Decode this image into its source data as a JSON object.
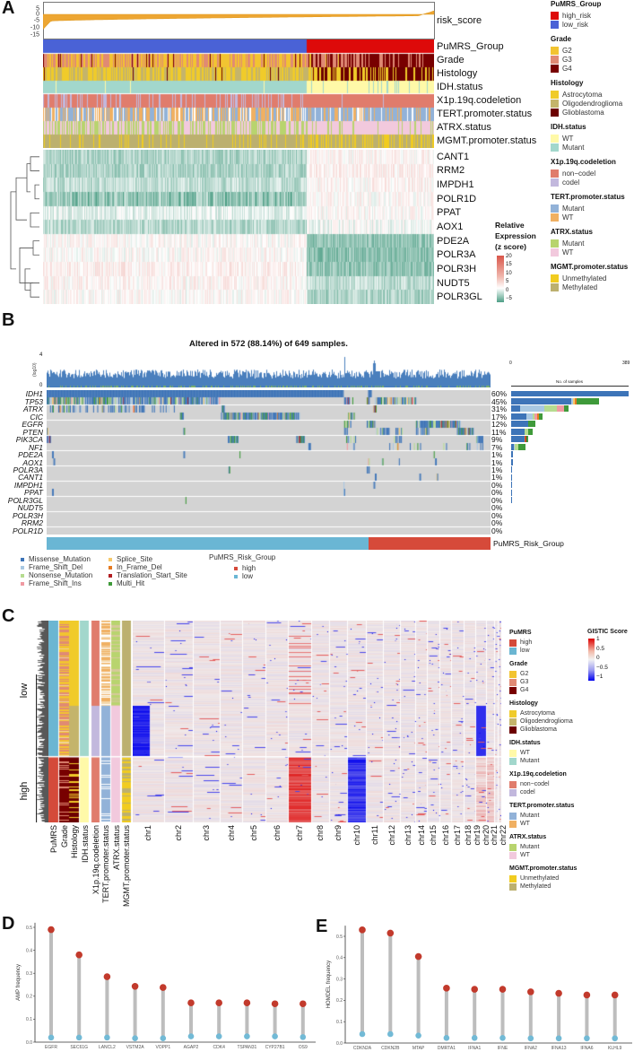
{
  "panel_labels": {
    "a": "A",
    "b": "B",
    "c": "C",
    "d": "D",
    "e": "E"
  },
  "colors": {
    "low_risk": "#4a62d6",
    "high_risk": "#dd0a0a",
    "G2": "#f2c431",
    "G3": "#e08a74",
    "G4": "#780000",
    "Astrocytoma": "#f0cb2a",
    "Oligodendroglioma": "#c4b46b",
    "Glioblastoma": "#6c0000",
    "IDH_WT": "#fff9a8",
    "IDH_Mutant": "#a2d7cc",
    "noncodel": "#e07c6c",
    "codel": "#c2b8dd",
    "TERT_Mutant": "#92b2d8",
    "TERT_WT": "#f0b062",
    "ATRX_Mutant": "#b8d46e",
    "ATRX_WT": "#f2c9dd",
    "Unmethylated": "#f1cc20",
    "Methylated": "#bcb06f",
    "pumrs_high": "#d44a3a",
    "pumrs_low": "#6bb6d2",
    "expr_low": "#4e9f86",
    "expr_high": "#d9564a",
    "gistic_low": "#0000ee",
    "gistic_high": "#dd0000",
    "lolli_high": "#c23a2c",
    "lolli_low": "#72bad6",
    "stem": "#bdbdbd"
  },
  "panelA": {
    "risk_label": "risk_score",
    "risk_ticks": [
      "5",
      "0",
      "-5",
      "-10",
      "-15"
    ],
    "tracks": [
      "PuMRS_Group",
      "Grade",
      "Histology",
      "IDH.status",
      "X1p.19q.codeletion",
      "TERT.promoter.status",
      "ATRX.status",
      "MGMT.promoter.status"
    ],
    "genes": [
      "CANT1",
      "RRM2",
      "IMPDH1",
      "POLR1D",
      "PPAT",
      "AOX1",
      "PDE2A",
      "POLR3A",
      "POLR3H",
      "NUDT5",
      "POLR3GL"
    ],
    "expr_legend": {
      "title1": "Relative",
      "title2": "Expression",
      "title3": "(z score)",
      "ticks": [
        "20",
        "15",
        "10",
        "5",
        "0",
        "−5"
      ]
    },
    "legends": [
      {
        "title": "PuMRS_Group",
        "items": [
          {
            "label": "high_risk",
            "color": "#dd0a0a"
          },
          {
            "label": "low_risk",
            "color": "#4a62d6"
          }
        ]
      },
      {
        "title": "Grade",
        "items": [
          {
            "label": "G2",
            "color": "#f2c431"
          },
          {
            "label": "G3",
            "color": "#e08a74"
          },
          {
            "label": "G4",
            "color": "#780000"
          }
        ]
      },
      {
        "title": "Histology",
        "items": [
          {
            "label": "Astrocytoma",
            "color": "#f0cb2a"
          },
          {
            "label": "Oligodendroglioma",
            "color": "#c4b46b"
          },
          {
            "label": "Glioblastoma",
            "color": "#6c0000"
          }
        ]
      },
      {
        "title": "IDH.status",
        "items": [
          {
            "label": "WT",
            "color": "#fff9a8"
          },
          {
            "label": "Mutant",
            "color": "#a2d7cc"
          }
        ]
      },
      {
        "title": "X1p.19q.codeletion",
        "items": [
          {
            "label": "non−codel",
            "color": "#e07c6c"
          },
          {
            "label": "codel",
            "color": "#c2b8dd"
          }
        ]
      },
      {
        "title": "TERT.promoter.status",
        "items": [
          {
            "label": "Mutant",
            "color": "#92b2d8"
          },
          {
            "label": "WT",
            "color": "#f0b062"
          }
        ]
      },
      {
        "title": "ATRX.status",
        "items": [
          {
            "label": "Mutant",
            "color": "#b8d46e"
          },
          {
            "label": "WT",
            "color": "#f2c9dd"
          }
        ]
      },
      {
        "title": "MGMT.promoter.status",
        "items": [
          {
            "label": "Unmethylated",
            "color": "#f1cc20"
          },
          {
            "label": "Methylated",
            "color": "#bcb06f"
          }
        ]
      }
    ]
  },
  "panelB": {
    "title": "Altered in 572 (88.14%) of 649 samples.",
    "tmb_ylabel": "(log10)",
    "tmb_ticks": [
      "4",
      "0"
    ],
    "side_axis": {
      "min": "0",
      "max": "389",
      "label": "No. of samples",
      "max_value": 389
    },
    "genes": [
      "IDH1",
      "TP53",
      "ATRX",
      "CIC",
      "EGFR",
      "PTEN",
      "PIK3CA",
      "NF1",
      "PDE2A",
      "AOX1",
      "POLR3A",
      "CANT1",
      "IMPDH1",
      "PPAT",
      "POLR3GL",
      "NUDT5",
      "POLR3H",
      "RRM2",
      "POLR1D"
    ],
    "pcts": [
      "60%",
      "45%",
      "31%",
      "17%",
      "12%",
      "11%",
      "9%",
      "7%",
      "1%",
      "1%",
      "1%",
      "1%",
      "0%",
      "0%",
      "0%",
      "0%",
      "0%",
      "0%",
      "0%"
    ],
    "side_counts": [
      [
        389,
        0,
        0,
        0,
        0,
        0,
        0,
        0
      ],
      [
        200,
        6,
        0,
        0,
        4,
        6,
        0,
        75
      ],
      [
        30,
        80,
        40,
        25,
        0,
        0,
        0,
        14
      ],
      [
        50,
        20,
        8,
        8,
        0,
        6,
        0,
        12
      ],
      [
        55,
        0,
        0,
        0,
        0,
        0,
        0,
        25
      ],
      [
        45,
        0,
        10,
        0,
        0,
        0,
        0,
        15
      ],
      [
        45,
        0,
        0,
        0,
        0,
        4,
        3,
        5
      ],
      [
        8,
        3,
        12,
        0,
        0,
        0,
        2,
        22
      ],
      [
        6,
        0,
        0,
        0,
        0,
        0,
        0,
        0
      ],
      [
        6,
        0,
        0,
        0,
        0,
        0,
        0,
        0
      ],
      [
        4,
        0,
        0,
        0,
        0,
        0,
        0,
        0
      ],
      [
        3,
        0,
        0,
        0,
        0,
        0,
        0,
        0
      ],
      [
        2,
        0,
        0,
        0,
        0,
        0,
        0,
        0
      ],
      [
        2,
        0,
        0,
        0,
        0,
        0,
        0,
        0
      ],
      [
        1,
        0,
        0,
        0,
        0,
        0,
        0,
        0
      ],
      [
        0,
        0,
        0,
        0,
        0,
        0,
        0,
        0
      ],
      [
        0,
        0,
        0,
        0,
        0,
        0,
        0,
        0
      ],
      [
        0,
        0,
        0,
        0,
        0,
        0,
        0,
        0
      ],
      [
        0,
        0,
        0,
        0,
        0,
        0,
        0,
        0
      ]
    ],
    "risk_group_label": "PuMRS_Risk_Group",
    "low_fraction": 0.725,
    "variants": [
      {
        "label": "Missense_Mutation",
        "color": "#3d74b8"
      },
      {
        "label": "Frame_Shift_Del",
        "color": "#a9c8e2"
      },
      {
        "label": "Nonsense_Mutation",
        "color": "#b6dc90"
      },
      {
        "label": "Frame_Shift_Ins",
        "color": "#f09aa2"
      },
      {
        "label": "Splice_Site",
        "color": "#f6c96c"
      },
      {
        "label": "In_Frame_Del",
        "color": "#e57a22"
      },
      {
        "label": "Translation_Start_Site",
        "color": "#b21e22"
      },
      {
        "label": "Multi_Hit",
        "color": "#3f9a3a"
      }
    ],
    "group_legend": {
      "title": "PuMRS_Risk_Group",
      "items": [
        {
          "label": "high",
          "color": "#d64a3a"
        },
        {
          "label": "low",
          "color": "#6ab6d4"
        }
      ]
    }
  },
  "panelC": {
    "row_groups": [
      "low",
      "high"
    ],
    "annotation_columns": [
      "PuMRS",
      "Grade",
      "Histology",
      "IDH.status",
      "X1p.19q.codeletion",
      "TERT.promoter.status",
      "ATRX.status",
      "MGMT.promoter.status"
    ],
    "chromosomes": [
      "chr1",
      "chr2",
      "chr3",
      "chr4",
      "chr5",
      "chr6",
      "chr7",
      "chr8",
      "chr9",
      "chr10",
      "chr11",
      "chr12",
      "chr13",
      "chr14",
      "chr15",
      "chr16",
      "chr17",
      "chr18",
      "chr19",
      "chr20",
      "chr21",
      "chr22"
    ],
    "gistic_legend": {
      "title": "GISTIC Score",
      "ticks": [
        "1",
        "0.5",
        "0",
        "−0.5",
        "−1"
      ]
    },
    "legends": [
      {
        "title": "PuMRS",
        "items": [
          {
            "label": "high",
            "color": "#d44a3a"
          },
          {
            "label": "low",
            "color": "#6bb6d2"
          }
        ]
      },
      {
        "title": "Grade",
        "items": [
          {
            "label": "G2",
            "color": "#f2c431"
          },
          {
            "label": "G3",
            "color": "#e08a74"
          },
          {
            "label": "G4",
            "color": "#780000"
          }
        ]
      },
      {
        "title": "Histology",
        "items": [
          {
            "label": "Astrocytoma",
            "color": "#f0cb2a"
          },
          {
            "label": "Oligodendroglioma",
            "color": "#c4b46b"
          },
          {
            "label": "Glioblastoma",
            "color": "#6c0000"
          }
        ]
      },
      {
        "title": "IDH.status",
        "items": [
          {
            "label": "WT",
            "color": "#fff9a8"
          },
          {
            "label": "Mutant",
            "color": "#a2d7cc"
          }
        ]
      },
      {
        "title": "X1p.19q.codeletion",
        "items": [
          {
            "label": "non−codel",
            "color": "#e07c6c"
          },
          {
            "label": "codel",
            "color": "#c2b8dd"
          }
        ]
      },
      {
        "title": "TERT.promoter.status",
        "items": [
          {
            "label": "Mutant",
            "color": "#92b2d8"
          },
          {
            "label": "WT",
            "color": "#f0b062"
          }
        ]
      },
      {
        "title": "ATRX.status",
        "items": [
          {
            "label": "Mutant",
            "color": "#b8d46e"
          },
          {
            "label": "WT",
            "color": "#f2c9dd"
          }
        ]
      },
      {
        "title": "MGMT.promoter.status",
        "items": [
          {
            "label": "Unmethylated",
            "color": "#f1cc20"
          },
          {
            "label": "Methylated",
            "color": "#bcb06f"
          }
        ]
      }
    ]
  },
  "chart_data": [
    {
      "id": "D",
      "type": "lollipop",
      "ylabel": "AMP frequency",
      "xlabel": "",
      "ylim": [
        0,
        0.52
      ],
      "yticks": [
        "0.0",
        "0.1",
        "0.2",
        "0.3",
        "0.4",
        "0.5"
      ],
      "categories": [
        "EGFR",
        "SEC61G",
        "LANCL2",
        "VSTM2A",
        "VOPP1",
        "AGAP2",
        "CDK4",
        "TSPAN31",
        "CYP27B1",
        "OS9"
      ],
      "series": [
        {
          "name": "high",
          "values": [
            0.49,
            0.38,
            0.285,
            0.243,
            0.238,
            0.171,
            0.171,
            0.171,
            0.167,
            0.167
          ]
        },
        {
          "name": "low",
          "values": [
            0.02,
            0.02,
            0.02,
            0.017,
            0.017,
            0.025,
            0.025,
            0.025,
            0.025,
            0.022
          ]
        }
      ]
    },
    {
      "id": "E",
      "type": "lollipop",
      "ylabel": "HOMDEL frequency",
      "xlabel": "",
      "ylim": [
        0,
        0.55
      ],
      "yticks": [
        "0.0",
        "0.1",
        "0.2",
        "0.3",
        "0.4",
        "0.5"
      ],
      "categories": [
        "CDKN2A",
        "CDKN2B",
        "MTAP",
        "DMRTA1",
        "IFNA1",
        "IFNE",
        "IFNA2",
        "IFNA13",
        "IFNA6",
        "KLHL9"
      ],
      "series": [
        {
          "name": "high",
          "values": [
            0.53,
            0.515,
            0.405,
            0.257,
            0.252,
            0.252,
            0.24,
            0.233,
            0.225,
            0.225
          ]
        },
        {
          "name": "low",
          "values": [
            0.042,
            0.042,
            0.035,
            0.024,
            0.024,
            0.024,
            0.022,
            0.022,
            0.022,
            0.022
          ]
        }
      ]
    }
  ]
}
